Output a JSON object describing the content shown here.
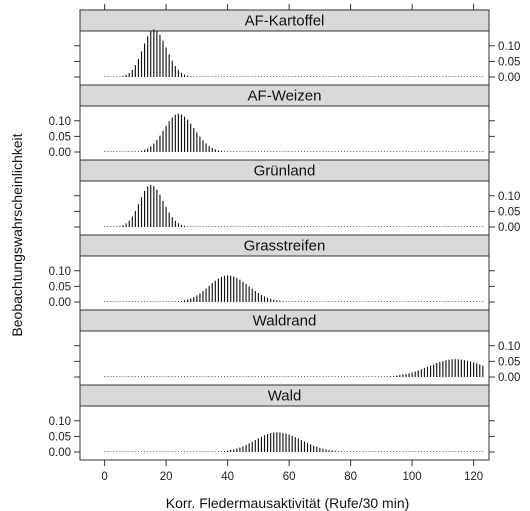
{
  "chart_data": {
    "type": "bar",
    "layout": "vertically stacked panels with shared x axis, alternating y-axis sides",
    "xlabel": "Korr. Fledermausaktivität (Rufe/30 min)",
    "ylabel": "Beobachtungswahrscheinlichkeit",
    "xlim": [
      -8,
      125
    ],
    "ylim": [
      0,
      0.16
    ],
    "x_ticks": [
      0,
      20,
      40,
      60,
      80,
      100,
      120
    ],
    "x_tick_labels": [
      "0",
      "20",
      "40",
      "60",
      "80",
      "100",
      "120"
    ],
    "y_ticks": [
      0,
      0.05,
      0.1
    ],
    "y_tick_labels": [
      "0.00",
      "0.05",
      "0.10"
    ],
    "x_range": [
      0,
      123
    ],
    "series": [
      {
        "name": "AF-Kartoffel",
        "peak_x": 16,
        "peak_y": 0.152,
        "spread_left": 3.6,
        "spread_right": 4.1,
        "y_axis_side": "right"
      },
      {
        "name": "AF-Weizen",
        "peak_x": 24,
        "peak_y": 0.122,
        "spread_left": 4.6,
        "spread_right": 5.2,
        "y_axis_side": "left"
      },
      {
        "name": "Grünland",
        "peak_x": 15,
        "peak_y": 0.135,
        "spread_left": 3.6,
        "spread_right": 4.1,
        "y_axis_side": "right"
      },
      {
        "name": "Grasstreifen",
        "peak_x": 40,
        "peak_y": 0.085,
        "spread_left": 6.0,
        "spread_right": 6.8,
        "y_axis_side": "left"
      },
      {
        "name": "Waldrand",
        "peak_x": 114,
        "peak_y": 0.057,
        "spread_left": 8.5,
        "spread_right": 9.5,
        "y_axis_side": "right"
      },
      {
        "name": "Wald",
        "peak_x": 56,
        "peak_y": 0.063,
        "spread_left": 7.0,
        "spread_right": 8.0,
        "y_axis_side": "left"
      }
    ],
    "grid": false,
    "legend": "none"
  }
}
